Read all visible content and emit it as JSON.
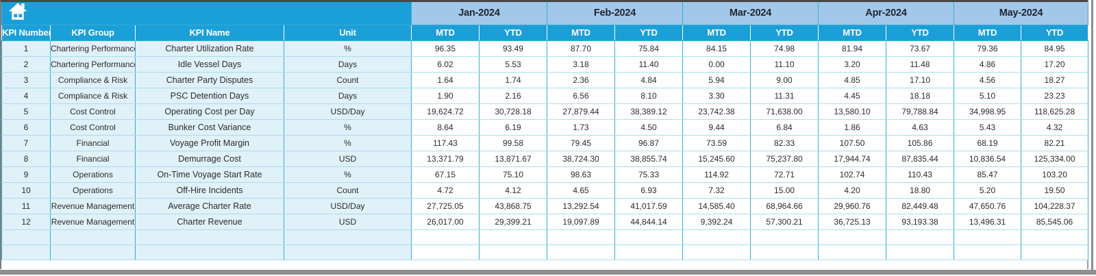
{
  "colors": {
    "header_teal": "#1B9FD8",
    "month_band": "#A3C7E9",
    "row_fill": "#E0F1F9",
    "grid": "#35AED6",
    "grid_light": "#A5DEEF"
  },
  "icons": {
    "home": "home-icon"
  },
  "table": {
    "left_headers": [
      "KPI Number",
      "KPI Group",
      "KPI Name",
      "Unit"
    ],
    "months": [
      "Jan-2024",
      "Feb-2024",
      "Mar-2024",
      "Apr-2024",
      "May-2024"
    ],
    "period_headers": [
      "MTD",
      "YTD"
    ],
    "rows": [
      {
        "n": "1",
        "group": "Chartering Performance",
        "name": "Charter Utilization Rate",
        "unit": "%",
        "v": [
          "96.35",
          "93.49",
          "87.70",
          "75.84",
          "84.15",
          "74.98",
          "81.94",
          "73.67",
          "79.36",
          "84.95"
        ]
      },
      {
        "n": "2",
        "group": "Chartering Performance",
        "name": "Idle Vessel Days",
        "unit": "Days",
        "v": [
          "6.02",
          "5.53",
          "3.18",
          "11.40",
          "0.00",
          "11.10",
          "3.20",
          "11.48",
          "4.86",
          "17.20"
        ]
      },
      {
        "n": "3",
        "group": "Compliance & Risk",
        "name": "Charter Party Disputes",
        "unit": "Count",
        "v": [
          "1.64",
          "1.74",
          "2.36",
          "4.84",
          "5.94",
          "9.00",
          "4.85",
          "17.10",
          "4.56",
          "18.27"
        ]
      },
      {
        "n": "4",
        "group": "Compliance & Risk",
        "name": "PSC Detention Days",
        "unit": "Days",
        "v": [
          "1.90",
          "2.16",
          "6.56",
          "8.10",
          "3.30",
          "11.31",
          "4.45",
          "18.18",
          "5.10",
          "23.23"
        ]
      },
      {
        "n": "5",
        "group": "Cost Control",
        "name": "Operating Cost per Day",
        "unit": "USD/Day",
        "v": [
          "19,624.72",
          "30,728.18",
          "27,879.44",
          "38,389.12",
          "23,742.38",
          "71,638.00",
          "13,580.10",
          "79,788.84",
          "34,998.95",
          "118,625.28"
        ]
      },
      {
        "n": "6",
        "group": "Cost Control",
        "name": "Bunker Cost Variance",
        "unit": "%",
        "v": [
          "8.64",
          "6.19",
          "1.73",
          "4.50",
          "9.44",
          "6.84",
          "1.86",
          "4.63",
          "5.43",
          "4.32"
        ]
      },
      {
        "n": "7",
        "group": "Financial",
        "name": "Voyage Profit Margin",
        "unit": "%",
        "v": [
          "117.43",
          "99.58",
          "79.45",
          "96.87",
          "73.59",
          "82.33",
          "107.50",
          "105.86",
          "68.19",
          "82.21"
        ]
      },
      {
        "n": "8",
        "group": "Financial",
        "name": "Demurrage Cost",
        "unit": "USD",
        "v": [
          "13,371.79",
          "13,871.67",
          "38,724.30",
          "38,855.74",
          "15,245.60",
          "75,237.80",
          "17,944.74",
          "87,835.44",
          "10,836.54",
          "125,334.00"
        ]
      },
      {
        "n": "9",
        "group": "Operations",
        "name": "On-Time Voyage Start Rate",
        "unit": "%",
        "v": [
          "67.15",
          "75.10",
          "98.63",
          "75.33",
          "114.92",
          "72.71",
          "102.74",
          "110.43",
          "85.47",
          "103.20"
        ]
      },
      {
        "n": "10",
        "group": "Operations",
        "name": "Off-Hire Incidents",
        "unit": "Count",
        "v": [
          "4.72",
          "4.12",
          "4.65",
          "6.93",
          "7.32",
          "15.00",
          "4.20",
          "18.80",
          "5.20",
          "19.50"
        ]
      },
      {
        "n": "11",
        "group": "Revenue Management",
        "name": "Average Charter Rate",
        "unit": "USD/Day",
        "v": [
          "27,725.05",
          "43,868.75",
          "13,292.54",
          "41,017.59",
          "14,585.40",
          "68,964.66",
          "29,960.76",
          "82,449.48",
          "47,650.76",
          "104,228.37"
        ]
      },
      {
        "n": "12",
        "group": "Revenue Management",
        "name": "Charter Revenue",
        "unit": "USD",
        "v": [
          "26,017.00",
          "29,399.21",
          "19,097.89",
          "44,844.14",
          "9,392.24",
          "57,300.21",
          "36,725.13",
          "93,193.38",
          "13,496.31",
          "85,545.06"
        ]
      }
    ],
    "empty_row_count": 2
  }
}
